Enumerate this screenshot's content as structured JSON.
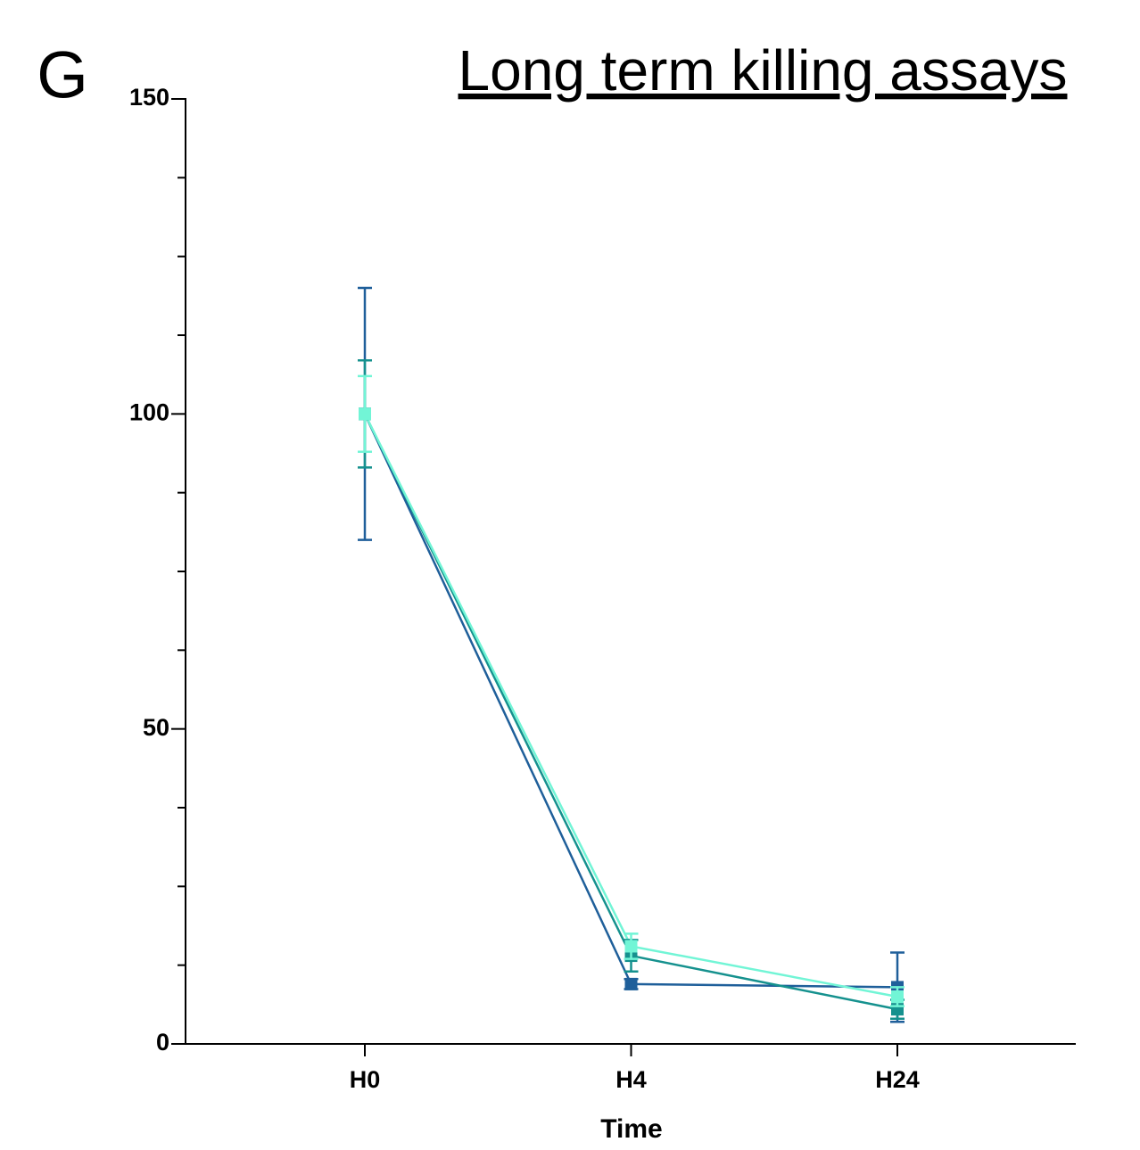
{
  "chart_data": {
    "type": "line",
    "panel_label": "G",
    "title": "Long term killing assays",
    "x_label": "Time",
    "categories": [
      "H0",
      "H4",
      "H24"
    ],
    "ylim": [
      0,
      150
    ],
    "yticks": [
      0,
      50,
      100,
      150
    ],
    "yminorticks": [
      12.5,
      25,
      37.5,
      62.5,
      75,
      87.5,
      112.5,
      125,
      137.5
    ],
    "grid": false,
    "series": [
      {
        "color": "#1f5f9a",
        "values": [
          100,
          9.5,
          9
        ],
        "errors": [
          20,
          0.8,
          5.5
        ]
      },
      {
        "color": "#15918e",
        "values": [
          100,
          14,
          5.5
        ],
        "errors": [
          8.5,
          2.5,
          1.5
        ]
      },
      {
        "color": "#72f5d6",
        "values": [
          100,
          15.5,
          7.5
        ],
        "errors": [
          6,
          2,
          1.5
        ]
      }
    ]
  }
}
